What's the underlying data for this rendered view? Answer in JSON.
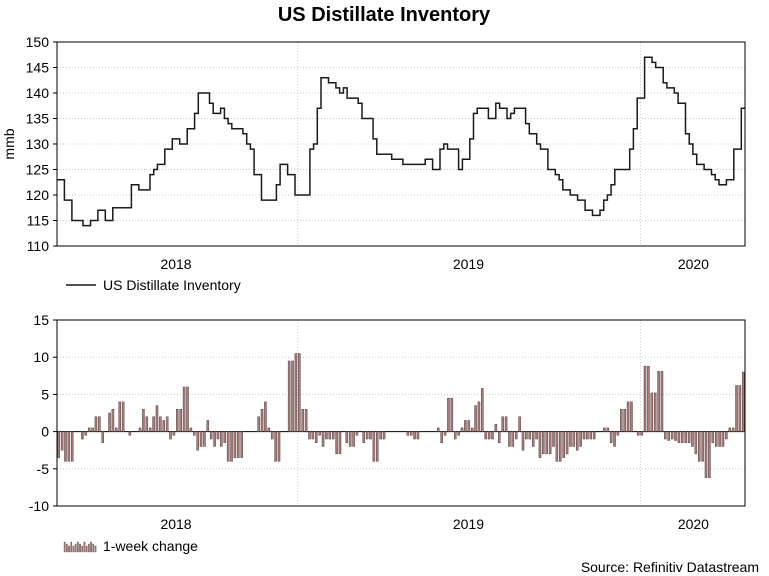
{
  "source": "Source: Refinitiv Datastream",
  "chart_data": [
    {
      "type": "line",
      "title": "US Distillate Inventory",
      "xlabel": "",
      "ylabel": "mmb",
      "ylim": [
        110,
        150
      ],
      "yticks": [
        110,
        115,
        120,
        125,
        130,
        135,
        140,
        145,
        150
      ],
      "x_start": "2017-09",
      "x_end": "2020-03",
      "x_period_labels": [
        "2018",
        "2019",
        "2020"
      ],
      "legend": "US Distillate Inventory",
      "series": [
        {
          "name": "US Distillate Inventory",
          "values": [
            123,
            123,
            119,
            119,
            115,
            115,
            115,
            114,
            114,
            115,
            115,
            117,
            117,
            115,
            115,
            117.5,
            117.5,
            117.5,
            117.5,
            117.5,
            122,
            122,
            121,
            121,
            121,
            124,
            125,
            126,
            126,
            129,
            129,
            131,
            131,
            130,
            130,
            133,
            133,
            136,
            140,
            140,
            140,
            138,
            136,
            136,
            137,
            135,
            134,
            133,
            133,
            133,
            132,
            130,
            129,
            124,
            124,
            119,
            119,
            119,
            119,
            122,
            126,
            126,
            124,
            124,
            120,
            120,
            120,
            120,
            129,
            130,
            137,
            143,
            143,
            142,
            142,
            141,
            140,
            141,
            139,
            139,
            139,
            138,
            135,
            135,
            135,
            131,
            128,
            128,
            128,
            128,
            127,
            127,
            127,
            126,
            126,
            126,
            126,
            126,
            126,
            127,
            127,
            125,
            125,
            129,
            130,
            129,
            129,
            129,
            125,
            127,
            127,
            131,
            136,
            137,
            137,
            137,
            135,
            135,
            138,
            137,
            137,
            135,
            136,
            137,
            137,
            137,
            134,
            132,
            132,
            130,
            129,
            129,
            125,
            125,
            124,
            123,
            121,
            121,
            120,
            120,
            119,
            119,
            117,
            117,
            116,
            116,
            117,
            119,
            120,
            122,
            125,
            125,
            125,
            125,
            129,
            133,
            139,
            139,
            147,
            147,
            146,
            145,
            145,
            142,
            141,
            141,
            140,
            138,
            138,
            132,
            130,
            128,
            126,
            126,
            125,
            125,
            124,
            123,
            122,
            122,
            123,
            123,
            129,
            129,
            137
          ]
        }
      ]
    },
    {
      "type": "bar",
      "title": "",
      "xlabel": "",
      "ylabel": "",
      "ylim": [
        -10,
        15
      ],
      "yticks": [
        -10,
        -5,
        0,
        5,
        10,
        15
      ],
      "x_start": "2017-09",
      "x_end": "2020-03",
      "x_period_labels": [
        "2018",
        "2019",
        "2020"
      ],
      "legend": "1-week change",
      "series": [
        {
          "name": "1-week change",
          "values": [
            -3.5,
            -2.5,
            -4,
            -4,
            -4,
            0,
            0,
            -1,
            -0.5,
            0.5,
            0.5,
            2,
            2,
            -1.5,
            0,
            2.5,
            3,
            0.5,
            4,
            4,
            0,
            -0.5,
            0,
            0,
            0.5,
            3,
            2,
            0.5,
            2,
            3.5,
            2,
            1.5,
            2,
            -1,
            -0.5,
            3,
            3,
            6,
            6,
            0.5,
            -0.5,
            -2.5,
            -2,
            -2,
            1.5,
            -1,
            -2,
            -1,
            -2,
            -1.5,
            -4,
            -4,
            -3.5,
            -3.5,
            -3.5,
            0,
            0,
            0,
            0,
            2,
            3,
            4,
            0.5,
            -1,
            -4,
            -4,
            0,
            0,
            9.5,
            9.5,
            10.5,
            10.5,
            3,
            3,
            -1,
            -1,
            -1.5,
            -0.5,
            -2,
            -1,
            -1,
            -1,
            -3,
            -3,
            0,
            -1.5,
            -2,
            -2,
            -0.5,
            0,
            -1.5,
            -1,
            -1,
            -4,
            -4,
            -1,
            -1,
            0,
            0,
            0,
            0,
            0,
            0,
            -0.5,
            -0.5,
            -1,
            -1,
            0,
            0,
            0,
            0,
            0,
            0.5,
            -1.5,
            -0.5,
            4.5,
            4.5,
            -1,
            -0.5,
            0.5,
            1.5,
            1.5,
            0.5,
            3.5,
            4,
            5.8,
            -1,
            -1,
            -1,
            1,
            -1.5,
            2,
            2,
            -2,
            -2,
            -1,
            2,
            -2.5,
            -1,
            -1,
            -2,
            -1,
            -3.5,
            -3,
            -3,
            -3,
            -2,
            -4,
            -4,
            -3.5,
            -3,
            -2,
            -2,
            -2.5,
            -2,
            -1,
            -1,
            -1,
            -1,
            0,
            0,
            0.5,
            0.5,
            -1.5,
            -2,
            -0.5,
            3,
            3,
            4,
            4,
            0,
            -0.5,
            -0.5,
            8.8,
            8.8,
            5.2,
            5.2,
            8.1,
            8.1,
            -1,
            -1.2,
            -1,
            -1.2,
            -1.5,
            -1.5,
            -1.5,
            -1.5,
            -2,
            -3,
            -4,
            -4,
            -6.2,
            -6.2,
            -1.5,
            -2,
            -2,
            -2,
            -1,
            0.5,
            0.5,
            6.2,
            6.2,
            8
          ]
        }
      ]
    }
  ]
}
